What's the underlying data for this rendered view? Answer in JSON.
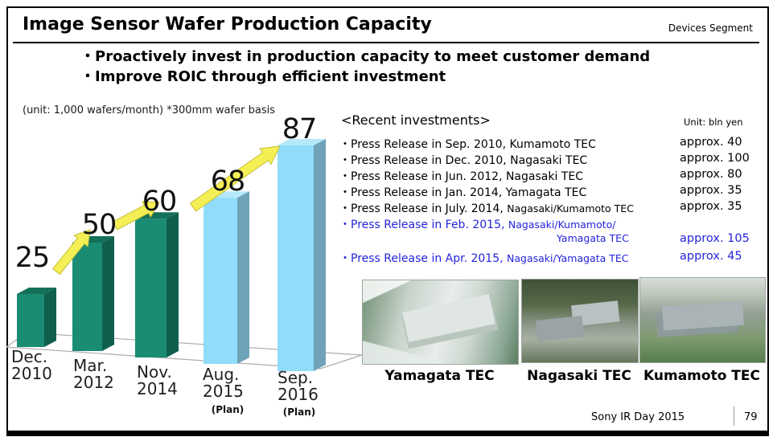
{
  "slide": {
    "title": "Image Sensor Wafer Production Capacity",
    "segment_label": "Devices Segment",
    "bullets": [
      "・Proactively invest in production capacity to meet customer demand",
      "・Improve ROIC through efficient investment"
    ],
    "footer": {
      "event": "Sony IR Day 2015",
      "page": "79"
    }
  },
  "chart_data": {
    "type": "bar",
    "title": "Image sensor wafer production capacity",
    "unit_note": "(unit: 1,000 wafers/month) *300mm wafer basis",
    "categories": [
      "Dec. 2010",
      "Mar. 2012",
      "Nov. 2014",
      "Aug. 2015 (Plan)",
      "Sep. 2016 (Plan)"
    ],
    "category_lines": [
      {
        "l1": "Dec.",
        "l2": "2010",
        "plan": ""
      },
      {
        "l1": "Mar.",
        "l2": "2012",
        "plan": ""
      },
      {
        "l1": "Nov.",
        "l2": "2014",
        "plan": ""
      },
      {
        "l1": "Aug.",
        "l2": "2015",
        "plan": "(Plan)"
      },
      {
        "l1": "Sep.",
        "l2": "2016",
        "plan": "(Plan)"
      }
    ],
    "values": [
      25,
      50,
      60,
      68,
      87
    ],
    "bar_styles": [
      "actual",
      "actual",
      "actual",
      "plan",
      "plan"
    ],
    "ylim": [
      0,
      100
    ],
    "grid": false,
    "legend": "none",
    "annotations": "yellow growth arrows between 25→50, 50→60 and 60→87",
    "colors": {
      "actual_front": "#1A8C73",
      "actual_side": "#0F5F4C",
      "actual_top": "#137059",
      "plan_front": "#90DCFA",
      "plan_side": "#6FA3B8",
      "plan_top": "#B5E8FB",
      "arrow_fill": "#F3EF55",
      "arrow_stroke": "#C8C135",
      "floor_stroke": "#ADADAD"
    }
  },
  "investments": {
    "heading": "<Recent investments>",
    "unit_label": "Unit: bln yen",
    "items": [
      {
        "main": "・Press Release in Sep. 2010, Kumamoto TEC",
        "amount": "approx. 40"
      },
      {
        "main": "・Press Release in Dec. 2010, Nagasaki TEC",
        "amount": "approx. 100"
      },
      {
        "main": "・Press Release in Jun. 2012, Nagasaki TEC",
        "amount": "approx. 80"
      },
      {
        "main": "・Press Release in Jan. 2014, Yamagata TEC",
        "amount": "approx. 35"
      },
      {
        "main": "・Press Release in July. 2014, ",
        "site": "Nagasaki/Kumamoto TEC",
        "amount": "approx. 35"
      },
      {
        "main": "・Press Release in Feb. 2015, ",
        "site": "Nagasaki/Kumamoto/",
        "site2": "Yamagata TEC",
        "amount": "approx. 105"
      },
      {
        "main": "・Press Release in Apr. 2015, ",
        "site": "Nagasaki/Yamagata TEC",
        "amount": "approx. 45"
      }
    ]
  },
  "facilities": [
    {
      "caption": "Yamagata TEC"
    },
    {
      "caption": "Nagasaki TEC"
    },
    {
      "caption": "Kumamoto TEC"
    }
  ]
}
